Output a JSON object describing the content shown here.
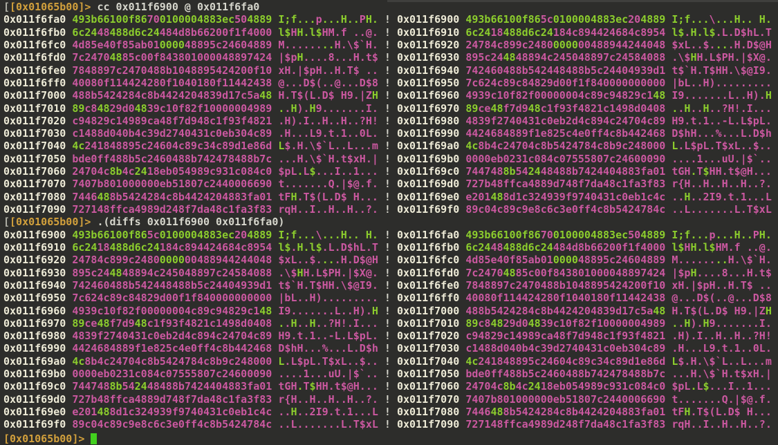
{
  "terminal": {
    "prompt": "[0x01065b00]>",
    "prompt_prefix": "[",
    "commands": [
      "cc 0x011f6900 @ 0x011f6fa0",
      ".(diffs 0x011f6900 0x011f6fa0)"
    ],
    "separator": "!"
  },
  "colors": {
    "background": "#2d2d2b",
    "address": "#eeebd7",
    "prompt": "#d2a03c",
    "prompt_prefix": "#b0b0a6",
    "command": "#d6d6cc",
    "match": "#8ccd2d",
    "diff": "#cb58a0",
    "separator": "#d6d6cc",
    "cursor": "#42d01e"
  },
  "regions": {
    "region_fa0": {
      "rows": [
        {
          "addr": "0x011f6fa0",
          "hex": "493b66100f86700100004883ec504889",
          "ascii": "I;f...p...H..PH."
        },
        {
          "addr": "0x011f6fb0",
          "hex": "6c2448488d6c24484d8b66200f1f4000",
          "ascii": "l$HH.l$HM.f ..@."
        },
        {
          "addr": "0x011f6fc0",
          "hex": "4d85e40f85ab01000048895c24604889",
          "ascii": "M........H.\\$`H."
        },
        {
          "addr": "0x011f6fd0",
          "hex": "7c24704885c00f843801000048897424",
          "ascii": "|$pH....8...H.t$"
        },
        {
          "addr": "0x011f6fe0",
          "hex": "7848897c2470488b1048895424200f10",
          "ascii": "xH.|$pH..H.T$ .."
        },
        {
          "addr": "0x011f6ff0",
          "hex": "40080f114424280f1040180f11442438",
          "ascii": "@...D$(..@...D$8"
        },
        {
          "addr": "0x011f7000",
          "hex": "488b5424284c8b4424204839d17c5a48",
          "ascii": "H.T$(L.D$ H9.|ZH"
        },
        {
          "addr": "0x011f7010",
          "hex": "89c84829d04839c10f82f10000004989",
          "ascii": "..H).H9.......I."
        },
        {
          "addr": "0x011f7020",
          "hex": "c94829c14989ca48f7d948c1f93f4821",
          "ascii": ".H).I..H..H..?H!"
        },
        {
          "addr": "0x011f7030",
          "hex": "c1488d040b4c39d2740431c0eb304c89",
          "ascii": ".H...L9.t.1..0L."
        },
        {
          "addr": "0x011f7040",
          "hex": "4c241848895c24604c89c34c89d1e86d",
          "ascii": "L$.H.\\$`L..L...m"
        },
        {
          "addr": "0x011f7050",
          "hex": "bde0ff488b5c2460488b742478488b7c",
          "ascii": "...H.\\$`H.t$xH.|"
        },
        {
          "addr": "0x011f7060",
          "hex": "24704c8b4c2418eb054989c931c084c0",
          "ascii": "$pL.L$...I..1..."
        },
        {
          "addr": "0x011f7070",
          "hex": "7407b801000000eb51807c2440006690",
          "ascii": "t.......Q.|$@.f."
        },
        {
          "addr": "0x011f7080",
          "hex": "7446488b5424284c8b4424204883fa01",
          "ascii": "tFH.T$(L.D$ H..."
        },
        {
          "addr": "0x011f7090",
          "hex": "727148ffca4989d248f7da48c1fa3f83",
          "ascii": "rqH..I..H..H..?."
        }
      ]
    },
    "region_6900": {
      "rows": [
        {
          "addr": "0x011f6900",
          "hex": "493b66100f865c0100004883ec204889",
          "ascii": "I;f...\\...H.. H."
        },
        {
          "addr": "0x011f6910",
          "hex": "6c2418488d6c24184c894424684c8954",
          "ascii": "l$.H.l$.L.D$hL.T"
        },
        {
          "addr": "0x011f6920",
          "hex": "24784c899c2480000000488944244048",
          "ascii": "$xL..$....H.D$@H"
        },
        {
          "addr": "0x011f6930",
          "hex": "895c244848894c245048897c24584088",
          "ascii": ".\\$HH.L$PH.|$X@."
        },
        {
          "addr": "0x011f6940",
          "hex": "742460488b542448488b5c24404939d1",
          "ascii": "t$`H.T$HH.\\$@I9."
        },
        {
          "addr": "0x011f6950",
          "hex": "7c624c89c84829d00f1f840000000000",
          "ascii": "|bL..H)........."
        },
        {
          "addr": "0x011f6960",
          "hex": "4939c10f82f00000004c89c94829c148",
          "ascii": "I9.......L..H).H"
        },
        {
          "addr": "0x011f6970",
          "hex": "89ce48f7d948c1f93f4821c1498d0408",
          "ascii": "..H..H..?H!.I..."
        },
        {
          "addr": "0x011f6980",
          "hex": "4839f2740431c0eb2d4c894c24704c89",
          "ascii": "H9.t.1..-L.L$pL."
        },
        {
          "addr": "0x011f6990",
          "hex": "4424684889f1e825c4e0ff4c8b442468",
          "ascii": "D$hH...%...L.D$h"
        },
        {
          "addr": "0x011f69a0",
          "hex": "4c8b4c24704c8b5424784c8b9c248000",
          "ascii": "L.L$pL.T$xL..$.."
        },
        {
          "addr": "0x011f69b0",
          "hex": "0000eb0231c084c07555807c24600090",
          "ascii": "....1...uU.|$`.."
        },
        {
          "addr": "0x011f69c0",
          "hex": "7447488b542448488b7424404883fa01",
          "ascii": "tGH.T$HH.t$@H..."
        },
        {
          "addr": "0x011f69d0",
          "hex": "727b48ffca4889d748f7da48c1fa3f83",
          "ascii": "r{H..H..H..H..?."
        },
        {
          "addr": "0x011f69e0",
          "hex": "e201488d1c324939f9740431c0eb1c4c",
          "ascii": "..H..2I9.t.1...L"
        },
        {
          "addr": "0x011f69f0",
          "hex": "89c04c89c9e8c6c3e0ff4c8b5424784c",
          "ascii": "..L.......L.T$xL"
        }
      ]
    }
  },
  "blocks": [
    {
      "left": "region_fa0",
      "right": "region_6900",
      "command_index": 0
    },
    {
      "left": "region_6900",
      "right": "region_fa0",
      "command_index": 1
    }
  ]
}
